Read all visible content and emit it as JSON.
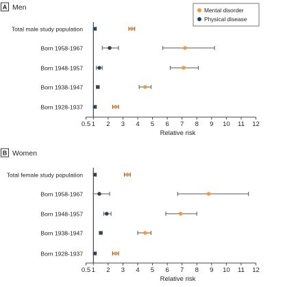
{
  "colors": {
    "mental": "#f2993a",
    "physical": "#27465d",
    "axis": "#444444",
    "refline": "#222222",
    "ci": "#555555",
    "panel_letter_bg": "#ffffff"
  },
  "legend": {
    "position": "top-right",
    "items": [
      {
        "key": "mental",
        "label": "Mental disorder"
      },
      {
        "key": "physical",
        "label": "Physical disease"
      }
    ]
  },
  "chart_data": [
    {
      "type": "forest",
      "panel": "A",
      "title": "Men",
      "xlabel": "Relative risk",
      "xlim": [
        0.5,
        12
      ],
      "xticks": [
        "0.5",
        "1",
        "2",
        "3",
        "4",
        "5",
        "6",
        "7",
        "8",
        "9",
        "10",
        "11",
        "12"
      ],
      "reference_line": 1,
      "categories": [
        "Total male study population",
        "Born 1958-1967",
        "Born 1948-1957",
        "Born 1938-1947",
        "Born 1928-1937"
      ],
      "series": [
        {
          "name": "Mental disorder",
          "color_key": "mental",
          "values": [
            3.6,
            7.2,
            7.1,
            4.5,
            2.5
          ],
          "ci_low": [
            3.4,
            5.7,
            6.2,
            4.1,
            2.3
          ],
          "ci_high": [
            3.8,
            9.2,
            8.1,
            4.9,
            2.7
          ]
        },
        {
          "name": "Physical disease",
          "color_key": "physical",
          "values": [
            1.1,
            2.1,
            1.4,
            1.3,
            1.1
          ],
          "ci_low": [
            1.0,
            1.6,
            1.2,
            1.2,
            1.0
          ],
          "ci_high": [
            1.2,
            2.7,
            1.6,
            1.4,
            1.2
          ]
        }
      ]
    },
    {
      "type": "forest",
      "panel": "B",
      "title": "Women",
      "xlabel": "Relative risk",
      "xlim": [
        0.5,
        12
      ],
      "xticks": [
        "0.5",
        "1",
        "2",
        "3",
        "4",
        "5",
        "6",
        "7",
        "8",
        "9",
        "10",
        "11",
        "12"
      ],
      "reference_line": 1,
      "categories": [
        "Total female study population",
        "Born 1958-1967",
        "Born 1948-1957",
        "Born 1938-1947",
        "Born 1928-1937"
      ],
      "series": [
        {
          "name": "Mental disorder",
          "color_key": "mental",
          "values": [
            3.3,
            8.8,
            6.9,
            4.5,
            2.5
          ],
          "ci_low": [
            3.1,
            6.7,
            5.9,
            4.0,
            2.3
          ],
          "ci_high": [
            3.5,
            11.5,
            8.0,
            4.9,
            2.7
          ]
        },
        {
          "name": "Physical disease",
          "color_key": "physical",
          "values": [
            1.1,
            1.4,
            1.9,
            1.5,
            1.1
          ],
          "ci_low": [
            1.0,
            1.0,
            1.7,
            1.4,
            1.0
          ],
          "ci_high": [
            1.2,
            2.1,
            2.2,
            1.6,
            1.2
          ]
        }
      ]
    }
  ]
}
